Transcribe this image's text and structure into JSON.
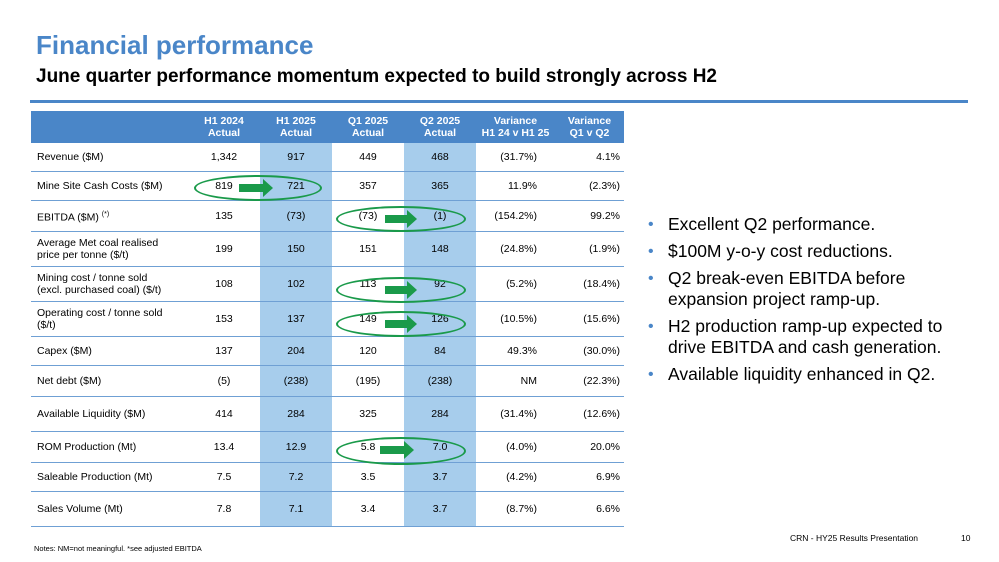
{
  "header": {
    "title": "Financial performance",
    "subtitle": "June quarter performance momentum expected to build strongly across H2"
  },
  "table": {
    "columns": [
      {
        "line1": "",
        "line2": ""
      },
      {
        "line1": "H1 2024",
        "line2": "Actual"
      },
      {
        "line1": "H1 2025",
        "line2": "Actual"
      },
      {
        "line1": "Q1 2025",
        "line2": "Actual"
      },
      {
        "line1": "Q2 2025",
        "line2": "Actual"
      },
      {
        "line1": "Variance",
        "line2": "H1 24 v H1 25"
      },
      {
        "line1": "Variance",
        "line2": "Q1 v Q2"
      }
    ],
    "rows": [
      {
        "label": "Revenue ($M)",
        "label2": "",
        "sup": "",
        "values": [
          "1,342",
          "917",
          "449",
          "468",
          "(31.7%)",
          "4.1%"
        ]
      },
      {
        "label": "Mine Site Cash Costs ($M)",
        "label2": "",
        "sup": "",
        "values": [
          "819",
          "721",
          "357",
          "365",
          "11.9%",
          "(2.3%)"
        ]
      },
      {
        "label": "EBITDA ($M)",
        "label2": "",
        "sup": "(*)",
        "values": [
          "135",
          "(73)",
          "(73)",
          "(1)",
          "(154.2%)",
          "99.2%"
        ]
      },
      {
        "label": "Average Met coal realised",
        "label2": "price per tonne ($/t)",
        "sup": "",
        "values": [
          "199",
          "150",
          "151",
          "148",
          "(24.8%)",
          "(1.9%)"
        ]
      },
      {
        "label": "Mining cost / tonne sold",
        "label2": "(excl. purchased coal) ($/t)",
        "sup": "",
        "values": [
          "108",
          "102",
          "113",
          "92",
          "(5.2%)",
          "(18.4%)"
        ]
      },
      {
        "label": "Operating cost / tonne sold",
        "label2": "($/t)",
        "sup": "",
        "values": [
          "153",
          "137",
          "149",
          "126",
          "(10.5%)",
          "(15.6%)"
        ]
      },
      {
        "label": "Capex ($M)",
        "label2": "",
        "sup": "",
        "values": [
          "137",
          "204",
          "120",
          "84",
          "49.3%",
          "(30.0%)"
        ]
      },
      {
        "label": "Net debt ($M)",
        "label2": "",
        "sup": "",
        "values": [
          "(5)",
          "(238)",
          "(195)",
          "(238)",
          "NM",
          "(22.3%)"
        ]
      },
      {
        "label": "Available Liquidity ($M)",
        "label2": "",
        "sup": "",
        "values": [
          "414",
          "284",
          "325",
          "284",
          "(31.4%)",
          "(12.6%)"
        ]
      },
      {
        "label": "ROM Production (Mt)",
        "label2": "",
        "sup": "",
        "values": [
          "13.4",
          "12.9",
          "5.8",
          "7.0",
          "(4.0%)",
          "20.0%"
        ]
      },
      {
        "label": "Saleable Production (Mt)",
        "label2": "",
        "sup": "",
        "values": [
          "7.5",
          "7.2",
          "3.5",
          "3.7",
          "(4.2%)",
          "6.9%"
        ]
      },
      {
        "label": "Sales Volume (Mt)",
        "label2": "",
        "sup": "",
        "values": [
          "7.8",
          "7.1",
          "3.4",
          "3.7",
          "(8.7%)",
          "6.6%"
        ]
      }
    ]
  },
  "bullets": [
    "Excellent Q2 performance.",
    "$100M y-o-y cost reductions.",
    "Q2 break-even EBITDA before expansion project ramp-up.",
    "H2 production ramp-up expected to drive EBITDA and cash generation.",
    "Available liquidity enhanced in Q2."
  ],
  "bullet_symbol": "•",
  "notes": "Notes:  NM=not meaningful. *see adjusted EBITDA",
  "footer": {
    "presentation": "CRN - HY25 Results Presentation",
    "page": "10"
  },
  "colors": {
    "accent": "#4a86c8",
    "shade": "#a7cdec",
    "highlight": "#1a9a4a"
  },
  "highlight_icons": [
    "green-oval-arrow-icon"
  ]
}
